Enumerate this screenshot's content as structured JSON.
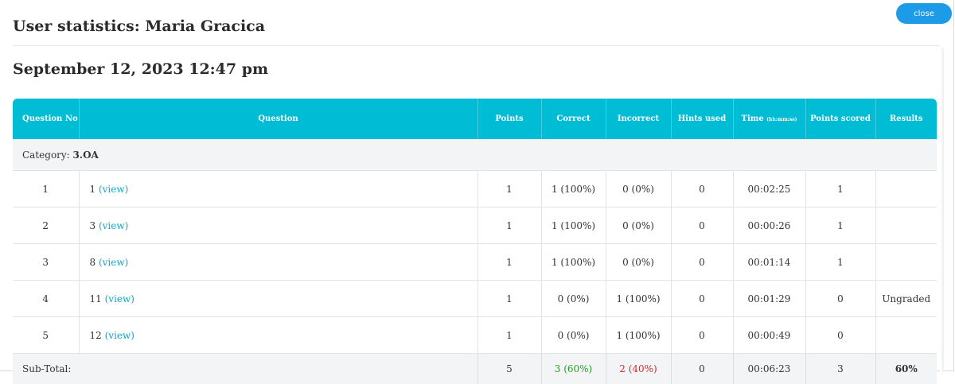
{
  "header": {
    "close_label": "close",
    "title": "User statistics: Maria Gracica",
    "date": "September 12, 2023 12:47 pm"
  },
  "table": {
    "columns": {
      "question_no": "Question No",
      "question": "Question",
      "points": "Points",
      "correct": "Correct",
      "incorrect": "Incorrect",
      "hints_used": "Hints used",
      "time": "Time",
      "time_unit": "(hh:mm:ss)",
      "points_scored": "Points scored",
      "results": "Results"
    },
    "category_label": "Category: ",
    "category_value": "3.OA",
    "view_label": "(view)",
    "rows": [
      {
        "no": "1",
        "question": "1",
        "points": "1",
        "correct": "1 (100%)",
        "incorrect": "0 (0%)",
        "hints": "0",
        "time": "00:02:25",
        "scored": "1",
        "result": ""
      },
      {
        "no": "2",
        "question": "3",
        "points": "1",
        "correct": "1 (100%)",
        "incorrect": "0 (0%)",
        "hints": "0",
        "time": "00:00:26",
        "scored": "1",
        "result": ""
      },
      {
        "no": "3",
        "question": "8",
        "points": "1",
        "correct": "1 (100%)",
        "incorrect": "0 (0%)",
        "hints": "0",
        "time": "00:01:14",
        "scored": "1",
        "result": ""
      },
      {
        "no": "4",
        "question": "11",
        "points": "1",
        "correct": "0 (0%)",
        "incorrect": "1 (100%)",
        "hints": "0",
        "time": "00:01:29",
        "scored": "0",
        "result": "Ungraded"
      },
      {
        "no": "5",
        "question": "12",
        "points": "1",
        "correct": "0 (0%)",
        "incorrect": "1 (100%)",
        "hints": "0",
        "time": "00:00:49",
        "scored": "0",
        "result": ""
      }
    ],
    "subtotal": {
      "label": "Sub-Total:",
      "points": "5",
      "correct": "3 (60%)",
      "incorrect": "2 (40%)",
      "hints": "0",
      "time": "00:06:23",
      "scored": "3",
      "result": "60%"
    }
  },
  "colors": {
    "header_bg": "#00bcd4",
    "close_button": "#1d9be6",
    "correct": "#2a9c2a",
    "incorrect": "#e12727",
    "link": "#15a7c7"
  }
}
